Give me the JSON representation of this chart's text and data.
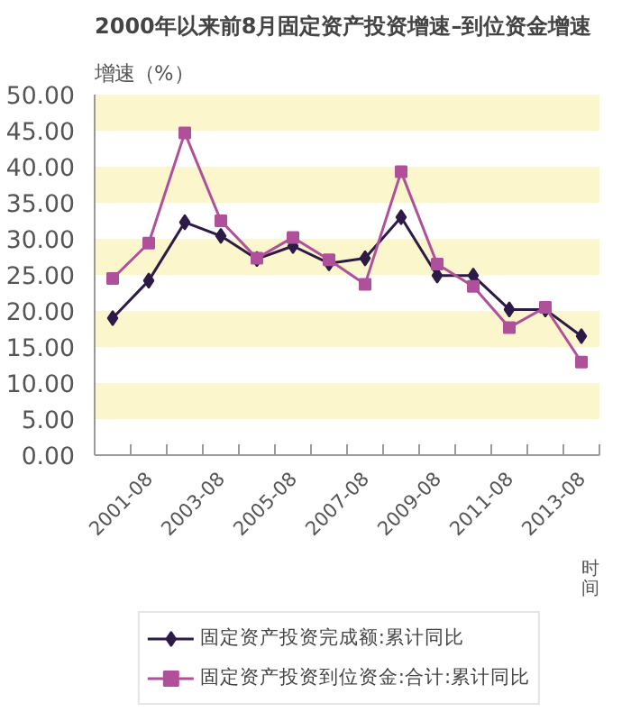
{
  "chart_data": {
    "type": "line",
    "title": "2000年以来前8月固定资产投资增速–到位资金增速",
    "ylabel": "增速（%）",
    "xlabel": "时间",
    "categories": [
      null,
      "2001-08",
      null,
      "2003-08",
      null,
      "2005-08",
      null,
      "2007-08",
      null,
      "2009-08",
      null,
      "2011-08",
      null,
      "2013-08"
    ],
    "series": [
      {
        "name": "固定资产投资完成额:累计同比",
        "color": "#2e1a47",
        "marker": "diamond",
        "values": [
          19.0,
          24.2,
          32.3,
          30.4,
          27.2,
          29.0,
          26.6,
          27.3,
          33.0,
          24.9,
          24.9,
          20.2,
          20.2,
          16.5
        ]
      },
      {
        "name": "固定资产投资到位资金:合计:累计同比",
        "color": "#b0509a",
        "marker": "square",
        "values": [
          24.5,
          29.4,
          44.7,
          32.5,
          27.3,
          30.2,
          27.1,
          23.7,
          39.3,
          26.5,
          23.4,
          17.7,
          20.5,
          12.9
        ]
      }
    ],
    "ylim": [
      0,
      50
    ],
    "yticks": [
      {
        "value": 0,
        "label": "0.00"
      },
      {
        "value": 5,
        "label": "5.00"
      },
      {
        "value": 10,
        "label": "10.00"
      },
      {
        "value": 15,
        "label": "15.00"
      },
      {
        "value": 20,
        "label": "20.00"
      },
      {
        "value": 25,
        "label": "25.00"
      },
      {
        "value": 30,
        "label": "30.00"
      },
      {
        "value": 35,
        "label": "35.00"
      },
      {
        "value": 40,
        "label": "40.00"
      },
      {
        "value": 45,
        "label": "45.00"
      },
      {
        "value": 50,
        "label": "50.00"
      }
    ],
    "bands": [
      {
        "axis": "y",
        "from": 5,
        "to": 10,
        "color": "#fbf6cc"
      },
      {
        "axis": "y",
        "from": 15,
        "to": 20,
        "color": "#fbf6cc"
      },
      {
        "axis": "y",
        "from": 25,
        "to": 30,
        "color": "#fbf6cc"
      },
      {
        "axis": "y",
        "from": 35,
        "to": 40,
        "color": "#fbf6cc"
      },
      {
        "axis": "y",
        "from": 45,
        "to": 50,
        "color": "#fbf6cc"
      }
    ],
    "legend": "bottom"
  }
}
